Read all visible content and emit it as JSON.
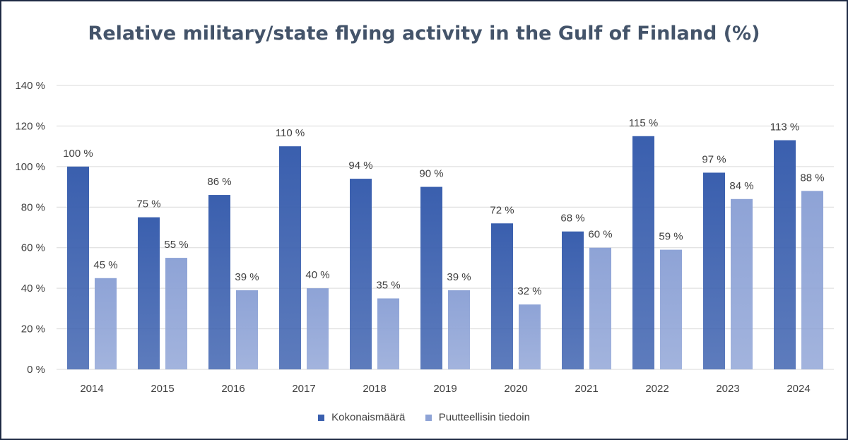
{
  "chart_data": {
    "type": "bar",
    "title": "Relative military/state flying activity in the Gulf of Finland (%)",
    "xlabel": "",
    "ylabel": "",
    "categories": [
      "2014",
      "2015",
      "2016",
      "2017",
      "2018",
      "2019",
      "2020",
      "2021",
      "2022",
      "2023",
      "2024"
    ],
    "series": [
      {
        "name": "Kokonaismäärä",
        "values": [
          100,
          75,
          86,
          110,
          94,
          90,
          72,
          68,
          115,
          97,
          113
        ],
        "labels": [
          "100 %",
          "75 %",
          "86 %",
          "110 %",
          "94 %",
          "90 %",
          "72 %",
          "68 %",
          "115 %",
          "97 %",
          "113 %"
        ],
        "color": "#3a5fae"
      },
      {
        "name": "Puutteellisin tiedoin",
        "values": [
          45,
          55,
          39,
          40,
          35,
          39,
          32,
          60,
          59,
          84,
          88
        ],
        "labels": [
          "45 %",
          "55 %",
          "39 %",
          "40 %",
          "35 %",
          "39 %",
          "32 %",
          "60 %",
          "59 %",
          "84 %",
          "88 %"
        ],
        "color": "#8ea3d6"
      }
    ],
    "ylim": [
      0,
      140
    ],
    "yticks": [
      0,
      20,
      40,
      60,
      80,
      100,
      120,
      140
    ],
    "ytick_labels": [
      "0 %",
      "20 %",
      "40 %",
      "60 %",
      "80 %",
      "100 %",
      "120 %",
      "140 %"
    ],
    "grid": true,
    "legend_position": "bottom"
  },
  "colors": {
    "title": "#44546a",
    "axis_text": "#404040",
    "gridline": "#d9d9d9",
    "border": "#1f2a44"
  }
}
